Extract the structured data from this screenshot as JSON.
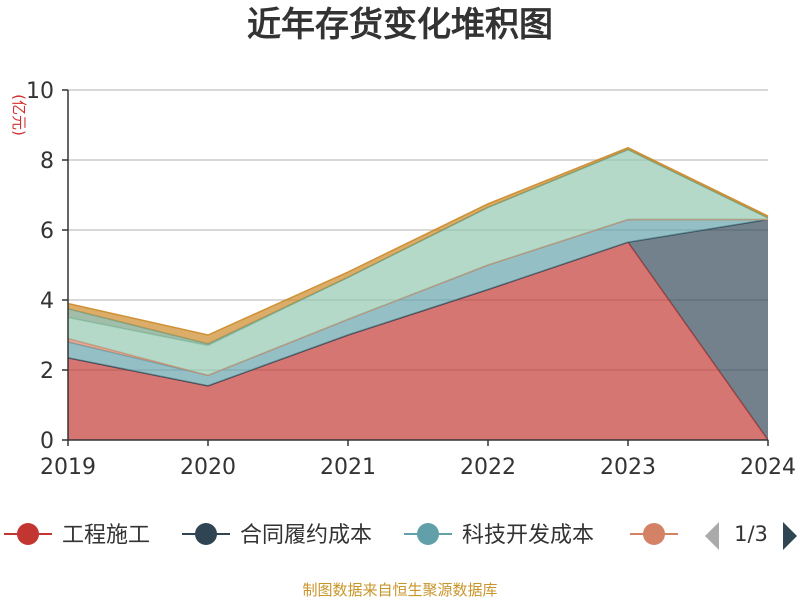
{
  "chart_data": {
    "type": "area",
    "stacked": true,
    "title": "近年存货变化堆积图",
    "unit_label": "(亿元)",
    "categories": [
      "2019",
      "2020",
      "2021",
      "2022",
      "2023",
      "2024"
    ],
    "ylim": [
      0,
      10
    ],
    "yticks": [
      0,
      2,
      4,
      6,
      8,
      10
    ],
    "grid": true,
    "series": [
      {
        "name": "工程施工",
        "color": "#c23531",
        "values": [
          2.35,
          1.55,
          3.0,
          4.3,
          5.65,
          0
        ]
      },
      {
        "name": "合同履约成本",
        "color": "#2f4554",
        "values": [
          0,
          0,
          0,
          0,
          0,
          6.3
        ]
      },
      {
        "name": "科技开发成本",
        "color": "#61a0a8",
        "values": [
          0.45,
          0.3,
          0.45,
          0.7,
          0.65,
          0.0
        ]
      },
      {
        "name": "",
        "color": "#d48265",
        "values": [
          0.1,
          0.0,
          0.0,
          0.0,
          0.0,
          0.0
        ]
      },
      {
        "name": "",
        "color": "#91c7ae",
        "values": [
          0.6,
          0.85,
          1.2,
          1.65,
          2.0,
          0.05
        ]
      },
      {
        "name": "",
        "color": "#749f83",
        "values": [
          0.25,
          0.05,
          0.0,
          0.0,
          0.0,
          0.0
        ]
      },
      {
        "name": "",
        "color": "#ca8622",
        "values": [
          0.15,
          0.25,
          0.15,
          0.1,
          0.05,
          0.05
        ]
      }
    ],
    "legend_visible_count": 4,
    "legend_position": "bottom"
  },
  "legend": {
    "page_indicator": "1/3"
  },
  "footer": {
    "source": "制图数据来自恒生聚源数据库"
  }
}
